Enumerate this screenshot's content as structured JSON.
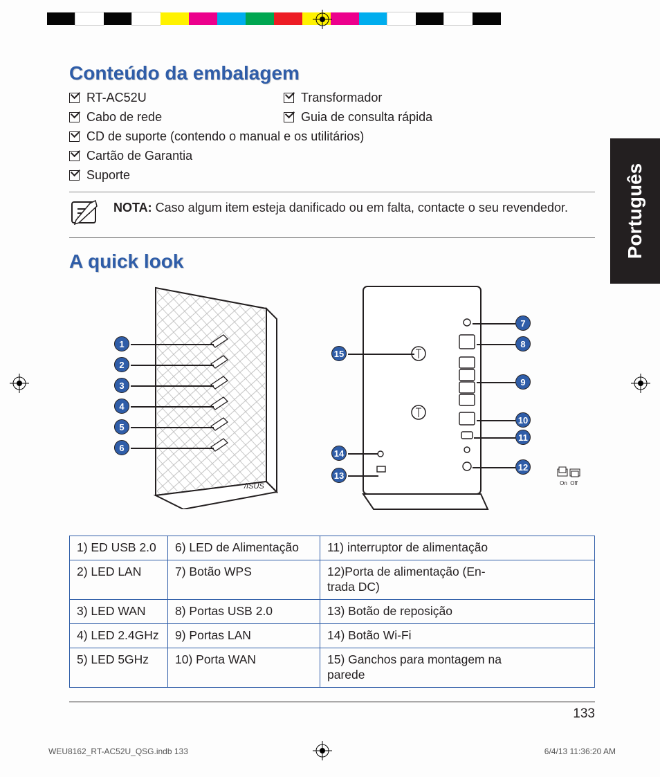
{
  "reg_colors": [
    "#050505",
    "#ffffff",
    "#050505",
    "#ffffff",
    "#fff200",
    "#ec008c",
    "#00adee",
    "#00a651",
    "#ed1c24",
    "#fff200",
    "#ec008c",
    "#00adee",
    "#ffffff",
    "#050505",
    "#ffffff",
    "#050505"
  ],
  "heading1": "Conteúdo da embalagem",
  "checklist": {
    "row1": {
      "a": "RT-AC52U",
      "b": "Transformador"
    },
    "row2": {
      "a": "Cabo de rede",
      "b": "Guia de consulta rápida"
    },
    "row3": "CD de suporte (contendo o manual e os utilitários)",
    "row4": " Cartão de Garantia",
    "row5": "Suporte"
  },
  "note": {
    "label": "NOTA:",
    "text": " Caso algum item esteja danificado ou em falta, contacte o seu revendedor."
  },
  "heading2": "A quick look",
  "side_tab": "Português",
  "callouts_left": [
    "1",
    "2",
    "3",
    "4",
    "5",
    "6"
  ],
  "callouts_right_left": [
    "15",
    "14",
    "13"
  ],
  "callouts_right_right": [
    "7",
    "8",
    "9",
    "10",
    "11",
    "12"
  ],
  "onoff": {
    "on": "On",
    "off": "Off"
  },
  "parts_table": [
    [
      "1)   ED USB 2.0",
      "6)   LED de Alimentação",
      "11) interruptor de alimentação"
    ],
    [
      "2)   LED LAN",
      "7)   Botão WPS",
      "12)Porta de alimentação (En-\n       trada DC)"
    ],
    [
      "3)   LED WAN",
      "8)    Portas USB 2.0",
      "13) Botão de reposição"
    ],
    [
      "4)   LED 2.4GHz",
      "9)   Portas LAN",
      "14) Botão Wi-Fi"
    ],
    [
      "5)   LED 5GHz",
      "10) Porta WAN",
      "15) Ganchos para montagem na\n       parede"
    ]
  ],
  "page_number": "133",
  "footer": {
    "left": "WEU8162_RT-AC52U_QSG.indb   133",
    "right": "6/4/13   11:36:20 AM"
  },
  "colors": {
    "accent": "#2f5da8",
    "text": "#231f20"
  }
}
